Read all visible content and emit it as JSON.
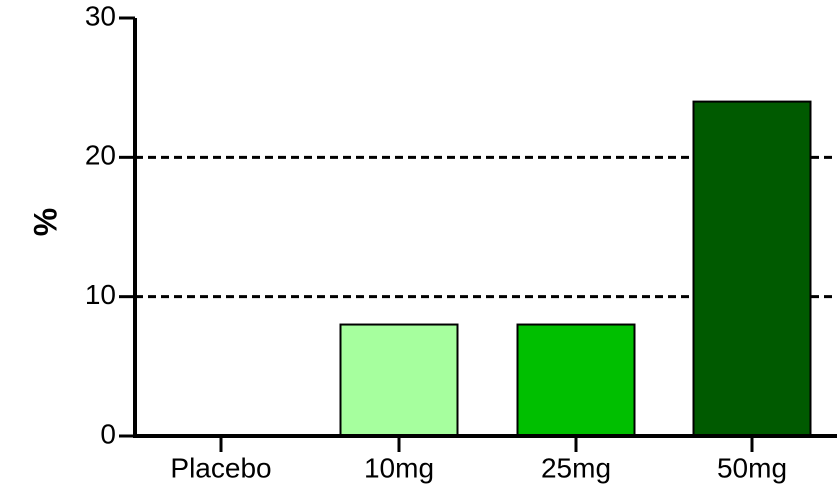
{
  "chart_data": {
    "type": "bar",
    "categories": [
      "Placebo",
      "10mg",
      "25mg",
      "50mg"
    ],
    "values": [
      0,
      8,
      8,
      24
    ],
    "bar_colors": [
      "#ffffff",
      "#a6ff9e",
      "#00bf00",
      "#005a00"
    ],
    "ylabel": "%",
    "xlabel": "",
    "title": "",
    "ylim": [
      0,
      30
    ],
    "yticks": [
      "0",
      "10",
      "20",
      "30"
    ],
    "reference_lines": [
      10,
      20
    ],
    "reference_line_style": "dashed",
    "grid": false,
    "legend": false
  }
}
